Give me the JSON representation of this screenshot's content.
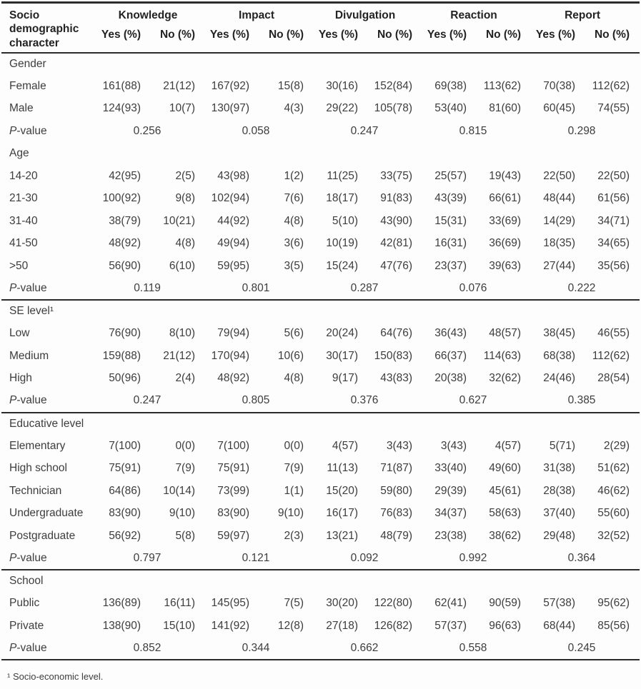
{
  "table": {
    "header": {
      "row_label": "Socio demographic character",
      "groups": [
        {
          "label": "Knowledge",
          "sub": [
            "Yes (%)",
            "No (%)"
          ]
        },
        {
          "label": "Impact",
          "sub": [
            "Yes (%)",
            "No (%)"
          ]
        },
        {
          "label": "Divulgation",
          "sub": [
            "Yes (%)",
            "No (%)"
          ]
        },
        {
          "label": "Reaction",
          "sub": [
            "Yes (%)",
            "No (%)"
          ]
        },
        {
          "label": "Report",
          "sub": [
            "Yes (%)",
            "No (%)"
          ]
        }
      ]
    },
    "p_label": "P-value",
    "sections": [
      {
        "name": "Gender",
        "rows": [
          {
            "label": "Female",
            "values": [
              "161(88)",
              "21(12)",
              "167(92)",
              "15(8)",
              "30(16)",
              "152(84)",
              "69(38)",
              "113(62)",
              "70(38)",
              "112(62)"
            ]
          },
          {
            "label": "Male",
            "values": [
              "124(93)",
              "10(7)",
              "130(97)",
              "4(3)",
              "29(22)",
              "105(78)",
              "53(40)",
              "81(60)",
              "60(45)",
              "74(55)"
            ]
          }
        ],
        "p_values": [
          "0.256",
          "0.058",
          "0.247",
          "0.815",
          "0.298"
        ]
      },
      {
        "name": "Age",
        "rows": [
          {
            "label": "14-20",
            "values": [
              "42(95)",
              "2(5)",
              "43(98)",
              "1(2)",
              "11(25)",
              "33(75)",
              "25(57)",
              "19(43)",
              "22(50)",
              "22(50)"
            ]
          },
          {
            "label": "21-30",
            "values": [
              "100(92)",
              "9(8)",
              "102(94)",
              "7(6)",
              "18(17)",
              "91(83)",
              "43(39)",
              "66(61)",
              "48(44)",
              "61(56)"
            ]
          },
          {
            "label": "31-40",
            "values": [
              "38(79)",
              "10(21)",
              "44(92)",
              "4(8)",
              "5(10)",
              "43(90)",
              "15(31)",
              "33(69)",
              "14(29)",
              "34(71)"
            ]
          },
          {
            "label": "41-50",
            "values": [
              "48(92)",
              "4(8)",
              "49(94)",
              "3(6)",
              "10(19)",
              "42(81)",
              "16(31)",
              "36(69)",
              "18(35)",
              "34(65)"
            ]
          },
          {
            "label": ">50",
            "values": [
              "56(90)",
              "6(10)",
              "59(95)",
              "3(5)",
              "15(24)",
              "47(76)",
              "23(37)",
              "39(63)",
              "27(44)",
              "35(56)"
            ]
          }
        ],
        "p_values": [
          "0.119",
          "0.801",
          "0.287",
          "0.076",
          "0.222"
        ]
      },
      {
        "name": "SE level¹",
        "rows": [
          {
            "label": "Low",
            "values": [
              "76(90)",
              "8(10)",
              "79(94)",
              "5(6)",
              "20(24)",
              "64(76)",
              "36(43)",
              "48(57)",
              "38(45)",
              "46(55)"
            ]
          },
          {
            "label": "Medium",
            "values": [
              "159(88)",
              "21(12)",
              "170(94)",
              "10(6)",
              "30(17)",
              "150(83)",
              "66(37)",
              "114(63)",
              "68(38)",
              "112(62)"
            ]
          },
          {
            "label": "High",
            "values": [
              "50(96)",
              "2(4)",
              "48(92)",
              "4(8)",
              "9(17)",
              "43(83)",
              "20(38)",
              "32(62)",
              "24(46)",
              "28(54)"
            ]
          }
        ],
        "p_values": [
          "0.247",
          "0.805",
          "0.376",
          "0.627",
          "0.385"
        ]
      },
      {
        "name": "Educative level",
        "rows": [
          {
            "label": "Elementary",
            "values": [
              "7(100)",
              "0(0)",
              "7(100)",
              "0(0)",
              "4(57)",
              "3(43)",
              "3(43)",
              "4(57)",
              "5(71)",
              "2(29)"
            ]
          },
          {
            "label": "High school",
            "values": [
              "75(91)",
              "7(9)",
              "75(91)",
              "7(9)",
              "11(13)",
              "71(87)",
              "33(40)",
              "49(60)",
              "31(38)",
              "51(62)"
            ]
          },
          {
            "label": "Technician",
            "values": [
              "64(86)",
              "10(14)",
              "73(99)",
              "1(1)",
              "15(20)",
              "59(80)",
              "29(39)",
              "45(61)",
              "28(38)",
              "46(62)"
            ]
          },
          {
            "label": "Undergraduate",
            "values": [
              "83(90)",
              "9(10)",
              "83(90)",
              "9(10)",
              "16(17)",
              "76(83)",
              "34(37)",
              "58(63)",
              "37(40)",
              "55(60)"
            ]
          },
          {
            "label": "Postgraduate",
            "values": [
              "56(92)",
              "5(8)",
              "59(97)",
              "2(3)",
              "13(21)",
              "48(79)",
              "23(38)",
              "38(62)",
              "29(48)",
              "32(52)"
            ]
          }
        ],
        "p_values": [
          "0.797",
          "0.121",
          "0.092",
          "0.992",
          "0.364"
        ]
      },
      {
        "name": "School",
        "rows": [
          {
            "label": "Public",
            "values": [
              "136(89)",
              "16(11)",
              "145(95)",
              "7(5)",
              "30(20)",
              "122(80)",
              "62(41)",
              "90(59)",
              "57(38)",
              "95(62)"
            ]
          },
          {
            "label": "Private",
            "values": [
              "138(90)",
              "15(10)",
              "141(92)",
              "12(8)",
              "27(18)",
              "126(82)",
              "57(37)",
              "96(63)",
              "68(44)",
              "85(56)"
            ]
          }
        ],
        "p_values": [
          "0.852",
          "0.344",
          "0.662",
          "0.558",
          "0.245"
        ]
      }
    ],
    "footnote": "¹ Socio-economic level."
  }
}
